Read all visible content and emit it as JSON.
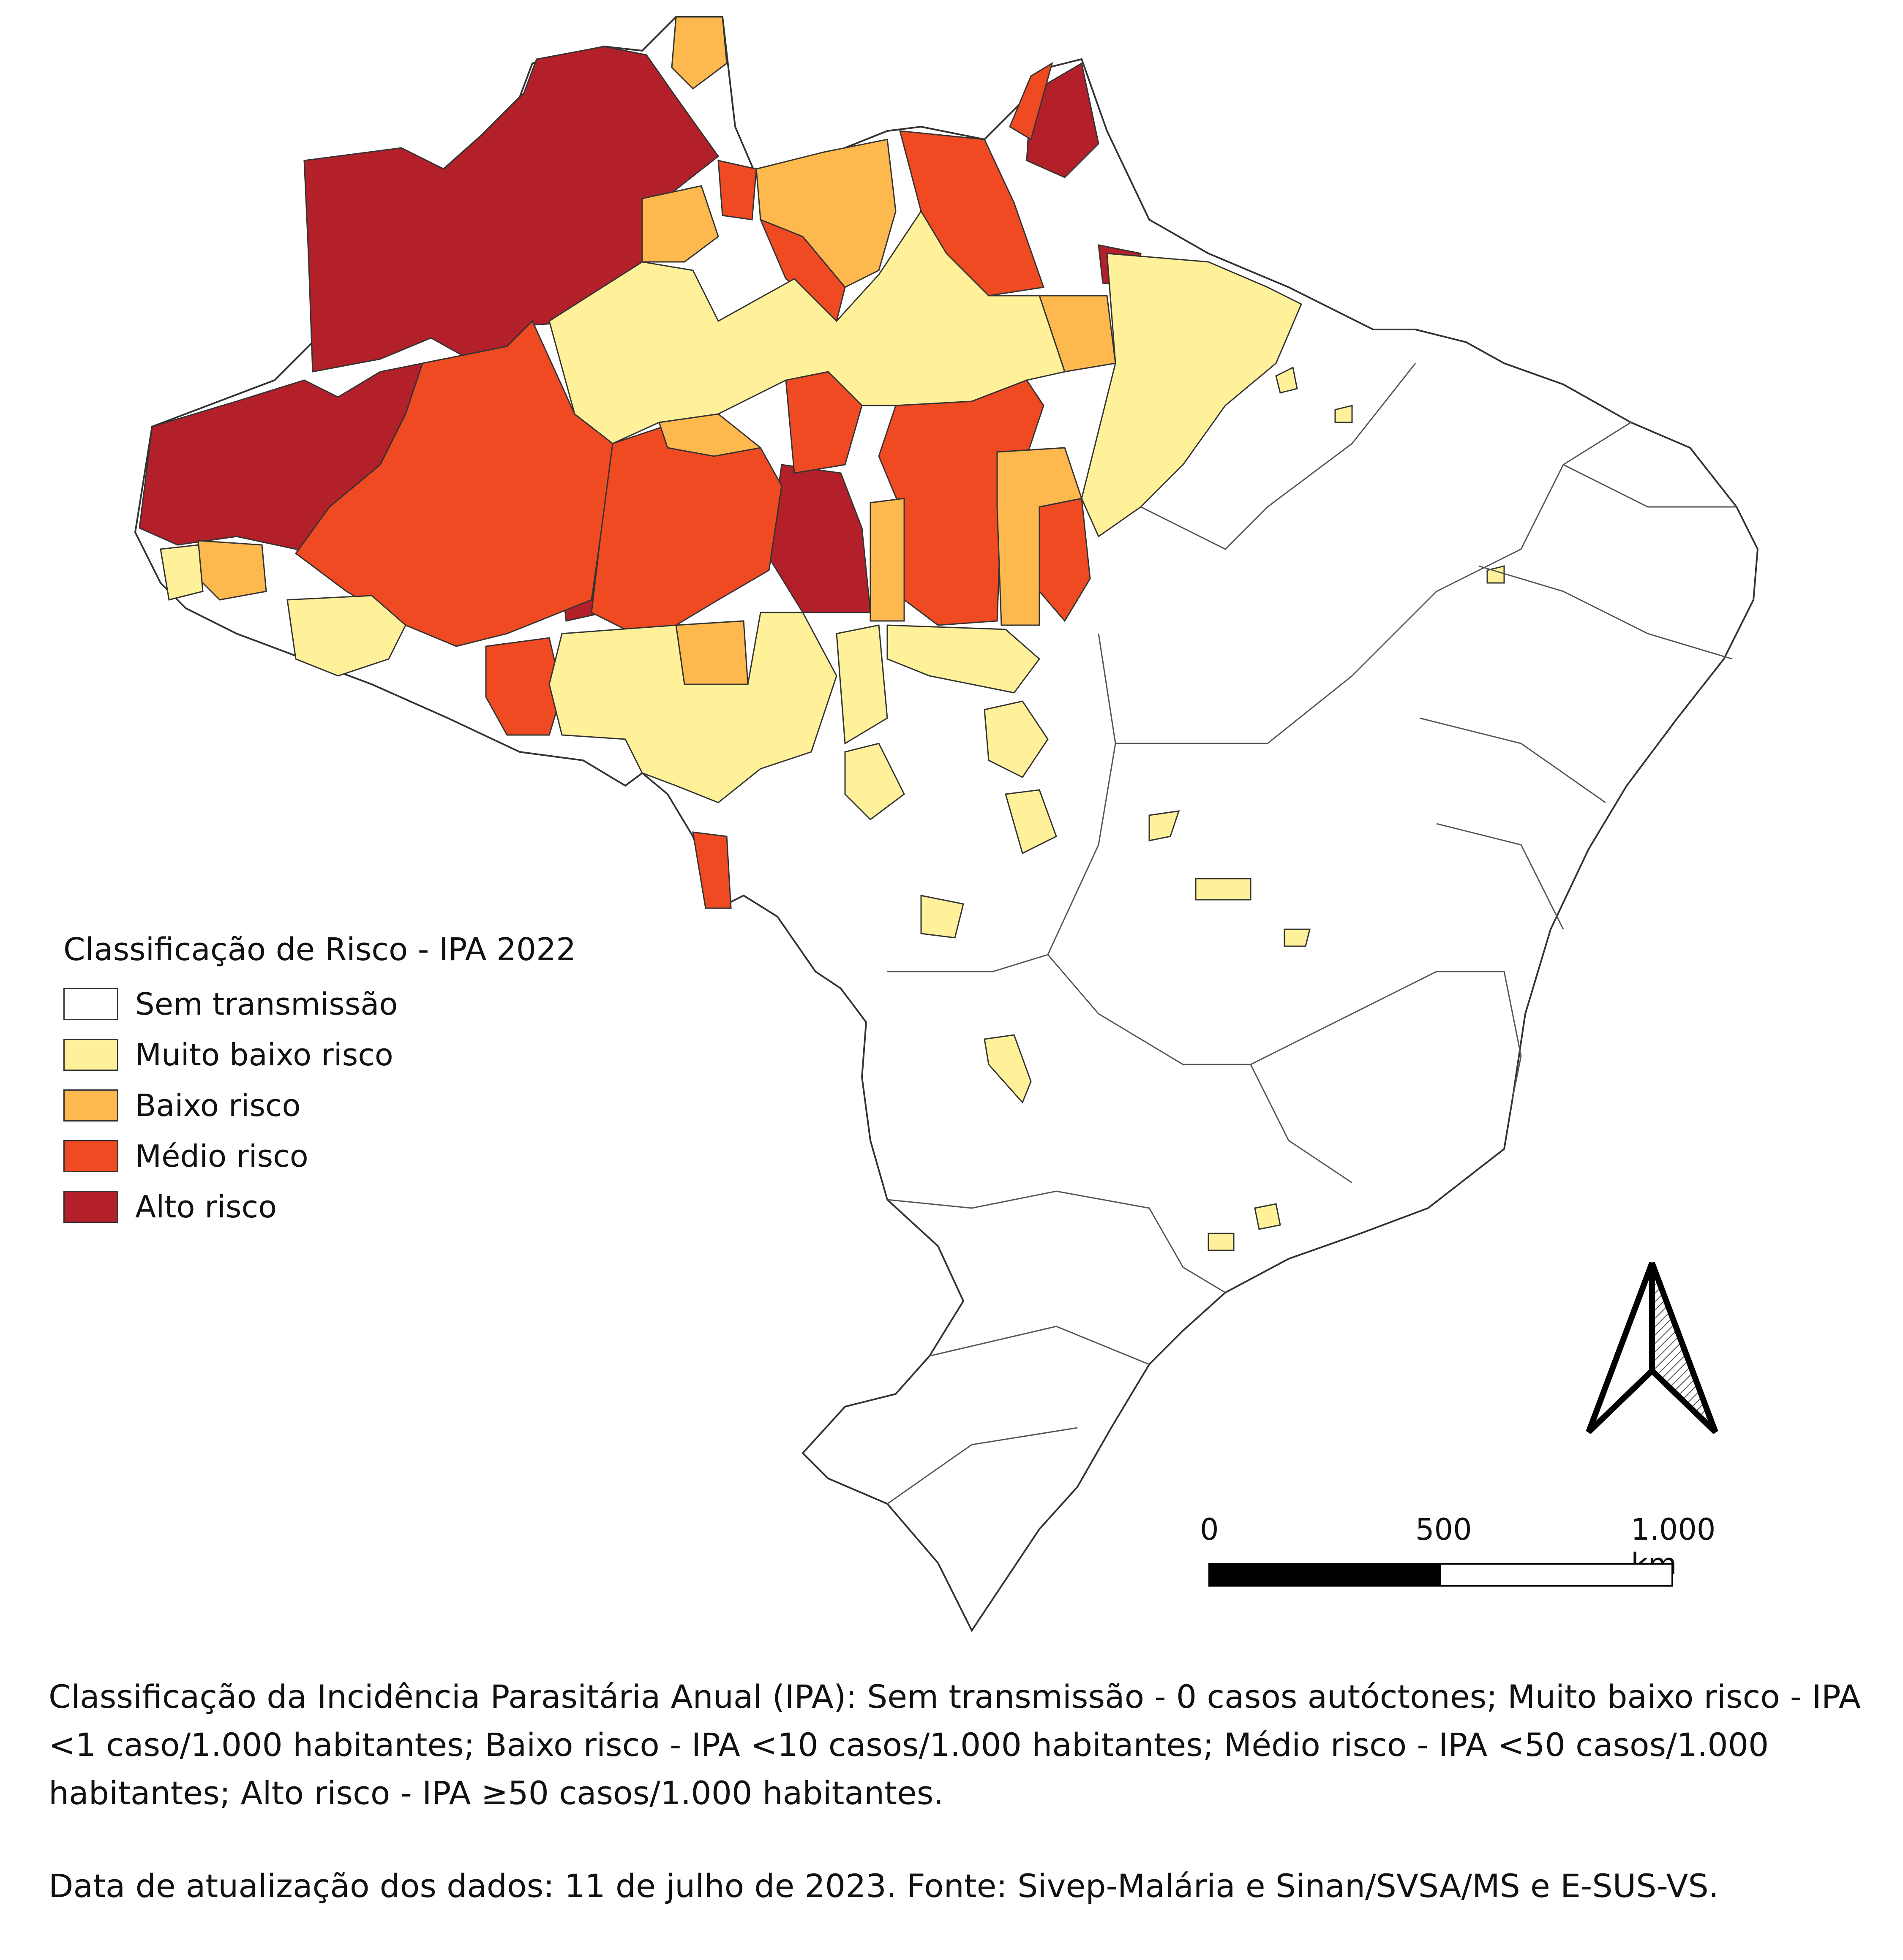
{
  "legend": {
    "title": "Classificação de Risco - IPA 2022",
    "classes": [
      {
        "label": "Sem transmissão",
        "color": "#ffffff"
      },
      {
        "label": "Muito baixo risco",
        "color": "#fff19a"
      },
      {
        "label": "Baixo risco",
        "color": "#fdb84e"
      },
      {
        "label": "Médio risco",
        "color": "#f04a22"
      },
      {
        "label": "Alto risco",
        "color": "#b3202a"
      }
    ]
  },
  "scale": {
    "labels": [
      "0",
      "500",
      "1.000 km"
    ]
  },
  "north_arrow": {
    "icon": "north-arrow-icon"
  },
  "footnote": "Classificação da Incidência Parasitária Anual (IPA): Sem transmissão - 0 casos autóctones; Muito baixo risco - IPA <1 caso/1.000 habitantes; Baixo risco - IPA <10 casos/1.000 habitantes; Médio risco - IPA <50 casos/1.000 habitantes; Alto risco - IPA ≥50 casos/1.000 habitantes.",
  "source": "Data de atualização dos dados: 11 de julho de 2023. Fonte: Sivep-Malária e Sinan/SVSA/MS e E-SUS-VS."
}
